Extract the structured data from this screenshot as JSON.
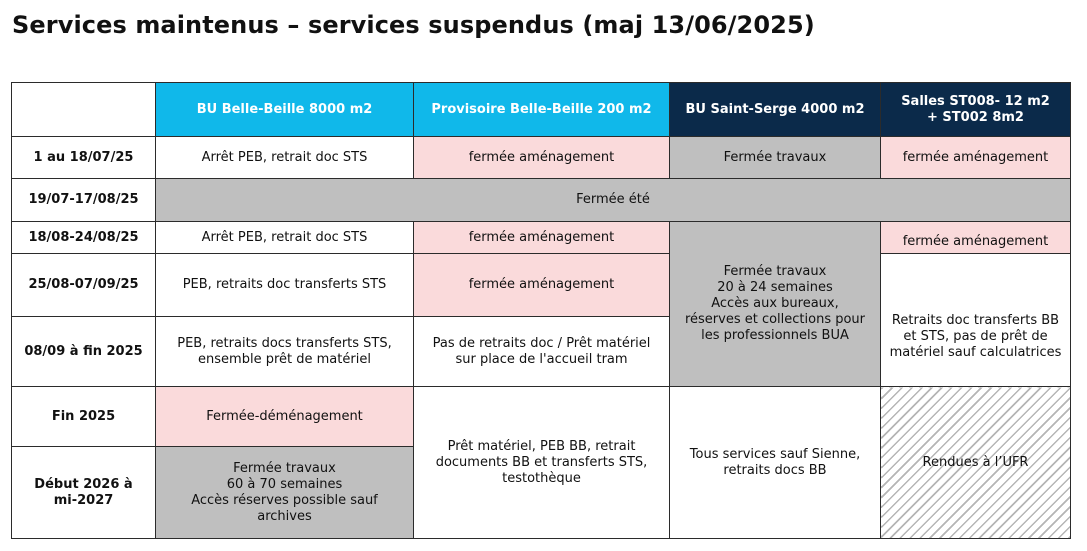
{
  "title": "Services maintenus – services suspendus (maj 13/06/2025)",
  "colors": {
    "cyan_header": "#10b8ea",
    "navy_header": "#0b2a4a",
    "pink_cell": "#fadadb",
    "grey_cell": "#bfbfbf"
  },
  "columns": [
    "BU Belle-Beille 8000 m2",
    "Provisoire Belle-Beille 200 m2",
    "BU Saint-Serge 4000 m2",
    "Salles ST008- 12 m2\n+ ST002 8m2"
  ],
  "rows": [
    "1 au 18/07/25",
    "19/07-17/08/25",
    "18/08-24/08/25",
    "25/08-07/09/25",
    "08/09 à fin 2025",
    "Fin 2025",
    "Début 2026 à\nmi-2027"
  ],
  "cells": {
    "r1_bb": "Arrêt PEB, retrait doc STS",
    "r1_prov": "fermée aménagement",
    "r1_ss": "Fermée travaux",
    "r1_st": "fermée aménagement",
    "r2_all": "Fermée été",
    "r3_bb": "Arrêt PEB, retrait doc STS",
    "r3_prov": "fermée aménagement",
    "r3_ss": "Fermée travaux\n20 à 24 semaines\nAccès aux bureaux,\nréserves et collections pour\nles professionnels BUA",
    "r3_st": "fermée aménagement",
    "r4_bb": "PEB, retraits doc transferts STS",
    "r4_prov": "fermée aménagement",
    "r4_st": "Retraits doc transferts BB\net STS, pas de prêt de\nmatériel sauf calculatrices",
    "r5_bb": "PEB, retraits docs transferts STS,\nensemble prêt de matériel",
    "r5_prov": "Pas de retraits doc / Prêt matériel\nsur place de l'accueil tram",
    "r6_bb": "Fermée-déménagement",
    "r6_prov": "Prêt matériel, PEB BB, retrait\ndocuments BB et transferts STS,\ntestothèque",
    "r6_ss": "Tous services sauf Sienne,\nretraits docs BB",
    "r6_st": "Rendues à l’UFR",
    "r7_bb": "Fermée travaux\n60 à 70 semaines\nAccès réserves possible sauf\narchives"
  }
}
